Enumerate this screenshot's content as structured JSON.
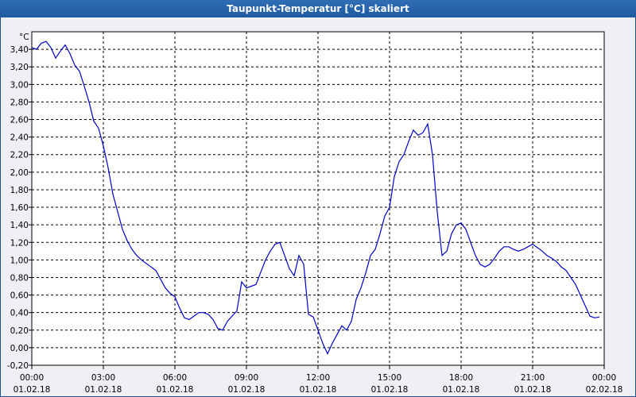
{
  "window": {
    "title": "Taupunkt-Temperatur [°C] skaliert"
  },
  "chart_data": {
    "type": "line",
    "title": "Taupunkt-Temperatur [°C] skaliert",
    "yunit": "°C",
    "ylim": [
      -0.2,
      3.6
    ],
    "yticks": [
      "3,40",
      "3,20",
      "3,00",
      "2,80",
      "2,60",
      "2,40",
      "2,20",
      "2,00",
      "1,80",
      "1,60",
      "1,40",
      "1,20",
      "1,00",
      "0,80",
      "0,60",
      "0,40",
      "0,20",
      "0,00",
      "-0,20"
    ],
    "ytick_values": [
      3.4,
      3.2,
      3.0,
      2.8,
      2.6,
      2.4,
      2.2,
      2.0,
      1.8,
      1.6,
      1.4,
      1.2,
      1.0,
      0.8,
      0.6,
      0.4,
      0.2,
      0.0,
      -0.2
    ],
    "xlim": [
      0,
      24
    ],
    "xticks": [
      {
        "time": "00:00",
        "date": "01.02.18",
        "h": 0
      },
      {
        "time": "03:00",
        "date": "01.02.18",
        "h": 3
      },
      {
        "time": "06:00",
        "date": "01.02.18",
        "h": 6
      },
      {
        "time": "09:00",
        "date": "01.02.18",
        "h": 9
      },
      {
        "time": "12:00",
        "date": "01.02.18",
        "h": 12
      },
      {
        "time": "15:00",
        "date": "01.02.18",
        "h": 15
      },
      {
        "time": "18:00",
        "date": "01.02.18",
        "h": 18
      },
      {
        "time": "21:00",
        "date": "01.02.18",
        "h": 21
      },
      {
        "time": "00:00",
        "date": "02.02.18",
        "h": 24
      }
    ],
    "grid": true,
    "series": [
      {
        "color": "#0000cc",
        "x": [
          0,
          0.2,
          0.4,
          0.6,
          0.8,
          1.0,
          1.2,
          1.4,
          1.6,
          1.8,
          2.0,
          2.2,
          2.4,
          2.6,
          2.8,
          3.0,
          3.2,
          3.4,
          3.6,
          3.8,
          4.0,
          4.2,
          4.4,
          4.6,
          4.8,
          5.0,
          5.2,
          5.4,
          5.6,
          5.8,
          6.0,
          6.2,
          6.4,
          6.6,
          6.8,
          7.0,
          7.2,
          7.4,
          7.6,
          7.8,
          8.0,
          8.2,
          8.4,
          8.6,
          8.8,
          9.0,
          9.2,
          9.4,
          9.6,
          9.8,
          10.0,
          10.2,
          10.4,
          10.6,
          10.8,
          11.0,
          11.2,
          11.4,
          11.6,
          11.8,
          12.0,
          12.2,
          12.4,
          12.6,
          12.8,
          13.0,
          13.2,
          13.4,
          13.6,
          13.8,
          14.0,
          14.2,
          14.4,
          14.6,
          14.8,
          15.0,
          15.2,
          15.4,
          15.6,
          15.8,
          16.0,
          16.2,
          16.4,
          16.6,
          16.8,
          17.0,
          17.2,
          17.4,
          17.6,
          17.8,
          18.0,
          18.2,
          18.4,
          18.6,
          18.8,
          19.0,
          19.2,
          19.4,
          19.6,
          19.8,
          20.0,
          20.2,
          20.4,
          20.6,
          20.8,
          21.0,
          21.2,
          21.4,
          21.6,
          21.8,
          22.0,
          22.2,
          22.4,
          22.6,
          22.8,
          23.0,
          23.2,
          23.4,
          23.6,
          23.8
        ],
        "y": [
          3.42,
          3.4,
          3.47,
          3.49,
          3.42,
          3.3,
          3.38,
          3.45,
          3.35,
          3.22,
          3.15,
          2.98,
          2.8,
          2.58,
          2.5,
          2.3,
          2.05,
          1.75,
          1.55,
          1.35,
          1.22,
          1.12,
          1.05,
          1.0,
          0.96,
          0.92,
          0.88,
          0.78,
          0.68,
          0.62,
          0.58,
          0.45,
          0.34,
          0.32,
          0.36,
          0.4,
          0.4,
          0.38,
          0.32,
          0.22,
          0.2,
          0.3,
          0.36,
          0.42,
          0.75,
          0.68,
          0.7,
          0.72,
          0.86,
          1.0,
          1.1,
          1.18,
          1.2,
          1.05,
          0.9,
          0.82,
          1.05,
          0.95,
          0.38,
          0.35,
          0.2,
          0.05,
          -0.07,
          0.05,
          0.15,
          0.25,
          0.2,
          0.3,
          0.55,
          0.68,
          0.85,
          1.05,
          1.12,
          1.3,
          1.5,
          1.6,
          1.95,
          2.12,
          2.2,
          2.35,
          2.48,
          2.42,
          2.45,
          2.55,
          2.2,
          1.55,
          1.05,
          1.1,
          1.3,
          1.4,
          1.42,
          1.35,
          1.2,
          1.05,
          0.95,
          0.92,
          0.95,
          1.02,
          1.1,
          1.15,
          1.15,
          1.12,
          1.1,
          1.12,
          1.15,
          1.18,
          1.14,
          1.1,
          1.05,
          1.02,
          0.98,
          0.92,
          0.88,
          0.8,
          0.72,
          0.6,
          0.48,
          0.36,
          0.34,
          0.35
        ]
      }
    ]
  }
}
